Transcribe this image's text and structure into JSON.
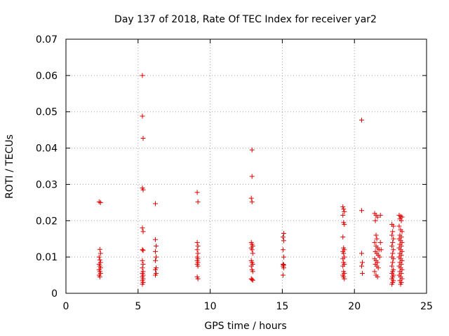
{
  "chart_data": {
    "type": "scatter",
    "title": "Day 137 of 2018, Rate Of TEC Index for receiver yar2",
    "xlabel": "GPS time / hours",
    "ylabel": "ROTI / TECUs",
    "xlim": [
      0,
      25
    ],
    "ylim": [
      0,
      0.07
    ],
    "xticks": [
      0,
      5,
      10,
      15,
      20,
      25
    ],
    "xtick_labels": [
      "0",
      "5",
      "10",
      "15",
      "20",
      "25"
    ],
    "yticks": [
      0,
      0.01,
      0.02,
      0.03,
      0.04,
      0.05,
      0.06,
      0.07
    ],
    "ytick_labels": [
      "0",
      "0.01",
      "0.02",
      "0.03",
      "0.04",
      "0.05",
      "0.06",
      "0.07"
    ],
    "grid": true,
    "marker": "plus",
    "color": "#e00000",
    "series": [
      {
        "name": "yar2",
        "points": [
          [
            2.3,
            0.0252
          ],
          [
            2.4,
            0.025
          ],
          [
            2.35,
            0.0121
          ],
          [
            2.4,
            0.011
          ],
          [
            2.3,
            0.01
          ],
          [
            2.35,
            0.0092
          ],
          [
            2.4,
            0.0085
          ],
          [
            2.3,
            0.008
          ],
          [
            2.35,
            0.0075
          ],
          [
            2.4,
            0.007
          ],
          [
            2.3,
            0.0065
          ],
          [
            2.35,
            0.006
          ],
          [
            2.4,
            0.0055
          ],
          [
            2.3,
            0.005
          ],
          [
            2.35,
            0.0045
          ],
          [
            5.3,
            0.06
          ],
          [
            5.3,
            0.0488
          ],
          [
            5.35,
            0.0427
          ],
          [
            5.3,
            0.029
          ],
          [
            5.35,
            0.0285
          ],
          [
            5.3,
            0.018
          ],
          [
            5.35,
            0.017
          ],
          [
            5.3,
            0.012
          ],
          [
            5.35,
            0.0118
          ],
          [
            5.3,
            0.009
          ],
          [
            5.35,
            0.008
          ],
          [
            5.3,
            0.007
          ],
          [
            5.35,
            0.006
          ],
          [
            5.3,
            0.0055
          ],
          [
            5.35,
            0.005
          ],
          [
            5.3,
            0.0045
          ],
          [
            5.35,
            0.004
          ],
          [
            5.3,
            0.0035
          ],
          [
            5.35,
            0.003
          ],
          [
            5.3,
            0.0025
          ],
          [
            6.2,
            0.0247
          ],
          [
            6.2,
            0.0148
          ],
          [
            6.25,
            0.013
          ],
          [
            6.2,
            0.0115
          ],
          [
            6.25,
            0.01
          ],
          [
            6.2,
            0.009
          ],
          [
            6.25,
            0.007
          ],
          [
            6.2,
            0.0065
          ],
          [
            6.25,
            0.0055
          ],
          [
            6.2,
            0.005
          ],
          [
            9.1,
            0.0278
          ],
          [
            9.15,
            0.0252
          ],
          [
            9.1,
            0.014
          ],
          [
            9.15,
            0.013
          ],
          [
            9.1,
            0.012
          ],
          [
            9.15,
            0.011
          ],
          [
            9.1,
            0.01
          ],
          [
            9.15,
            0.0095
          ],
          [
            9.1,
            0.009
          ],
          [
            9.15,
            0.0085
          ],
          [
            9.1,
            0.008
          ],
          [
            9.15,
            0.0075
          ],
          [
            9.1,
            0.0045
          ],
          [
            9.15,
            0.004
          ],
          [
            12.9,
            0.0395
          ],
          [
            12.9,
            0.0322
          ],
          [
            12.85,
            0.0262
          ],
          [
            12.9,
            0.0252
          ],
          [
            12.85,
            0.014
          ],
          [
            12.9,
            0.0135
          ],
          [
            12.95,
            0.013
          ],
          [
            12.85,
            0.0125
          ],
          [
            12.9,
            0.012
          ],
          [
            12.95,
            0.011
          ],
          [
            12.85,
            0.009
          ],
          [
            12.9,
            0.0085
          ],
          [
            12.95,
            0.008
          ],
          [
            12.85,
            0.0075
          ],
          [
            12.9,
            0.0065
          ],
          [
            12.95,
            0.006
          ],
          [
            12.85,
            0.004
          ],
          [
            12.9,
            0.0038
          ],
          [
            12.95,
            0.0036
          ],
          [
            15.1,
            0.0165
          ],
          [
            15.05,
            0.0155
          ],
          [
            15.1,
            0.0145
          ],
          [
            15.05,
            0.012
          ],
          [
            15.1,
            0.01
          ],
          [
            15.05,
            0.008
          ],
          [
            15.1,
            0.0078
          ],
          [
            15.05,
            0.0075
          ],
          [
            15.1,
            0.007
          ],
          [
            15.05,
            0.005
          ],
          [
            19.2,
            0.0238
          ],
          [
            19.25,
            0.0232
          ],
          [
            19.3,
            0.0225
          ],
          [
            19.2,
            0.0215
          ],
          [
            19.25,
            0.0195
          ],
          [
            19.3,
            0.019
          ],
          [
            19.2,
            0.0155
          ],
          [
            19.25,
            0.0125
          ],
          [
            19.3,
            0.012
          ],
          [
            19.2,
            0.0115
          ],
          [
            19.25,
            0.011
          ],
          [
            19.3,
            0.01
          ],
          [
            19.2,
            0.0095
          ],
          [
            19.25,
            0.0085
          ],
          [
            19.3,
            0.008
          ],
          [
            19.2,
            0.0075
          ],
          [
            19.25,
            0.006
          ],
          [
            19.3,
            0.0055
          ],
          [
            19.2,
            0.005
          ],
          [
            19.25,
            0.0045
          ],
          [
            19.3,
            0.004
          ],
          [
            20.5,
            0.0477
          ],
          [
            20.5,
            0.0228
          ],
          [
            20.5,
            0.011
          ],
          [
            20.55,
            0.0085
          ],
          [
            20.5,
            0.0075
          ],
          [
            20.55,
            0.0055
          ],
          [
            21.4,
            0.022
          ],
          [
            21.5,
            0.0215
          ],
          [
            21.6,
            0.021
          ],
          [
            21.8,
            0.0215
          ],
          [
            21.45,
            0.02
          ],
          [
            21.5,
            0.016
          ],
          [
            21.55,
            0.015
          ],
          [
            21.4,
            0.014
          ],
          [
            21.5,
            0.013
          ],
          [
            21.6,
            0.0125
          ],
          [
            21.7,
            0.012
          ],
          [
            21.45,
            0.0115
          ],
          [
            21.55,
            0.011
          ],
          [
            21.65,
            0.0105
          ],
          [
            21.75,
            0.01
          ],
          [
            21.4,
            0.0095
          ],
          [
            21.5,
            0.009
          ],
          [
            21.6,
            0.0085
          ],
          [
            21.45,
            0.008
          ],
          [
            21.55,
            0.0075
          ],
          [
            21.65,
            0.007
          ],
          [
            21.4,
            0.006
          ],
          [
            21.5,
            0.005
          ],
          [
            21.6,
            0.0045
          ],
          [
            21.8,
            0.014
          ],
          [
            21.85,
            0.012
          ],
          [
            22.6,
            0.019
          ],
          [
            22.7,
            0.0185
          ],
          [
            22.65,
            0.017
          ],
          [
            22.6,
            0.016
          ],
          [
            22.7,
            0.015
          ],
          [
            22.65,
            0.014
          ],
          [
            22.6,
            0.013
          ],
          [
            22.7,
            0.012
          ],
          [
            22.65,
            0.011
          ],
          [
            22.6,
            0.01
          ],
          [
            22.7,
            0.0095
          ],
          [
            22.65,
            0.0085
          ],
          [
            22.6,
            0.0075
          ],
          [
            22.7,
            0.0065
          ],
          [
            22.65,
            0.006
          ],
          [
            22.6,
            0.0055
          ],
          [
            22.7,
            0.005
          ],
          [
            22.65,
            0.0045
          ],
          [
            22.6,
            0.004
          ],
          [
            22.7,
            0.0035
          ],
          [
            22.65,
            0.003
          ],
          [
            22.6,
            0.0025
          ],
          [
            23.1,
            0.0215
          ],
          [
            23.2,
            0.0212
          ],
          [
            23.3,
            0.021
          ],
          [
            23.15,
            0.0205
          ],
          [
            23.25,
            0.02
          ],
          [
            23.1,
            0.0185
          ],
          [
            23.2,
            0.0175
          ],
          [
            23.3,
            0.017
          ],
          [
            23.15,
            0.016
          ],
          [
            23.25,
            0.0155
          ],
          [
            23.1,
            0.015
          ],
          [
            23.2,
            0.0145
          ],
          [
            23.3,
            0.014
          ],
          [
            23.15,
            0.0135
          ],
          [
            23.25,
            0.013
          ],
          [
            23.1,
            0.0125
          ],
          [
            23.2,
            0.012
          ],
          [
            23.3,
            0.0115
          ],
          [
            23.15,
            0.011
          ],
          [
            23.25,
            0.0105
          ],
          [
            23.1,
            0.01
          ],
          [
            23.2,
            0.0095
          ],
          [
            23.3,
            0.009
          ],
          [
            23.15,
            0.0085
          ],
          [
            23.25,
            0.008
          ],
          [
            23.1,
            0.0075
          ],
          [
            23.2,
            0.007
          ],
          [
            23.3,
            0.0065
          ],
          [
            23.15,
            0.006
          ],
          [
            23.25,
            0.0055
          ],
          [
            23.1,
            0.005
          ],
          [
            23.2,
            0.0045
          ],
          [
            23.3,
            0.004
          ],
          [
            23.15,
            0.0035
          ],
          [
            23.25,
            0.003
          ],
          [
            23.2,
            0.0025
          ]
        ]
      }
    ]
  }
}
